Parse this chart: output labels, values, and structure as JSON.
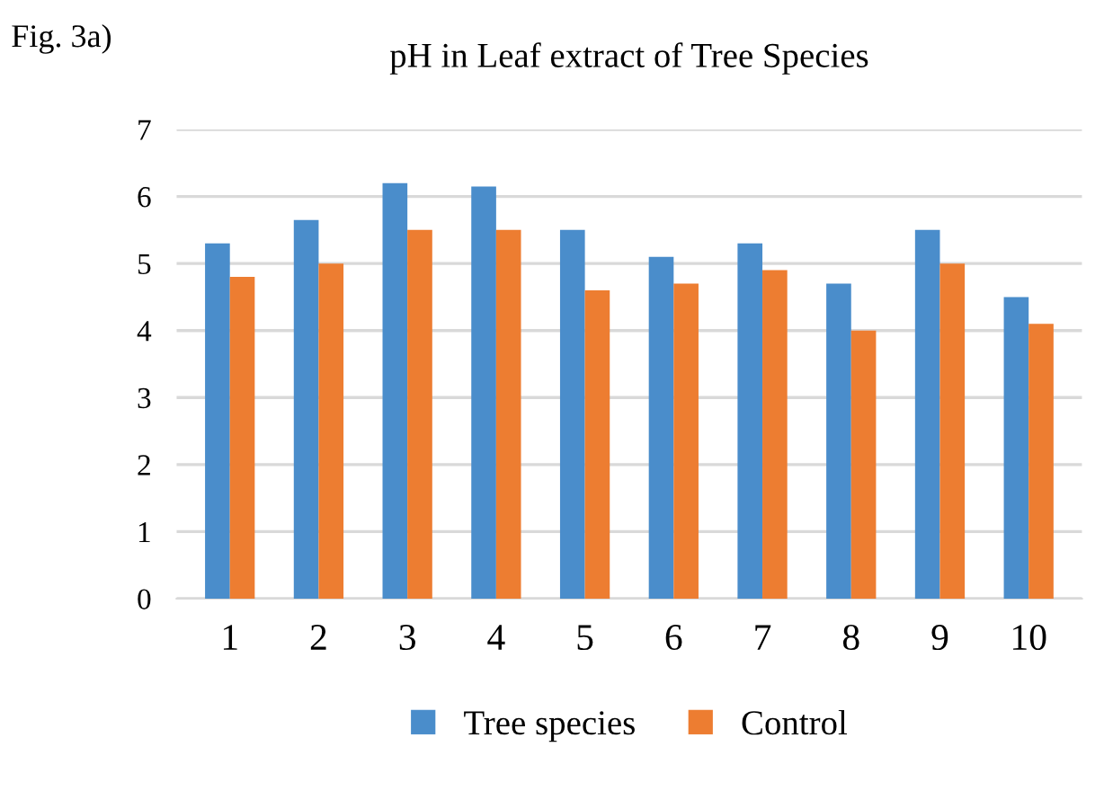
{
  "chart_data": {
    "type": "bar",
    "title": "pH in Leaf extract of Tree Species",
    "annotations": [
      "Fig. 3a)"
    ],
    "categories": [
      "1",
      "2",
      "3",
      "4",
      "5",
      "6",
      "7",
      "8",
      "9",
      "10"
    ],
    "series": [
      {
        "name": "Tree species",
        "color": "#4a8dcb",
        "values": [
          5.3,
          5.65,
          6.2,
          6.15,
          5.5,
          5.1,
          5.3,
          4.7,
          5.5,
          4.5
        ]
      },
      {
        "name": "Control",
        "color": "#ed7d31",
        "values": [
          4.8,
          5.0,
          5.5,
          5.5,
          4.6,
          4.7,
          4.9,
          4.0,
          5.0,
          4.1
        ]
      }
    ],
    "ylim": [
      0,
      7
    ],
    "yticks": [
      0,
      1,
      2,
      3,
      4,
      5,
      6,
      7
    ],
    "grid": "y",
    "legend": "bottom"
  }
}
